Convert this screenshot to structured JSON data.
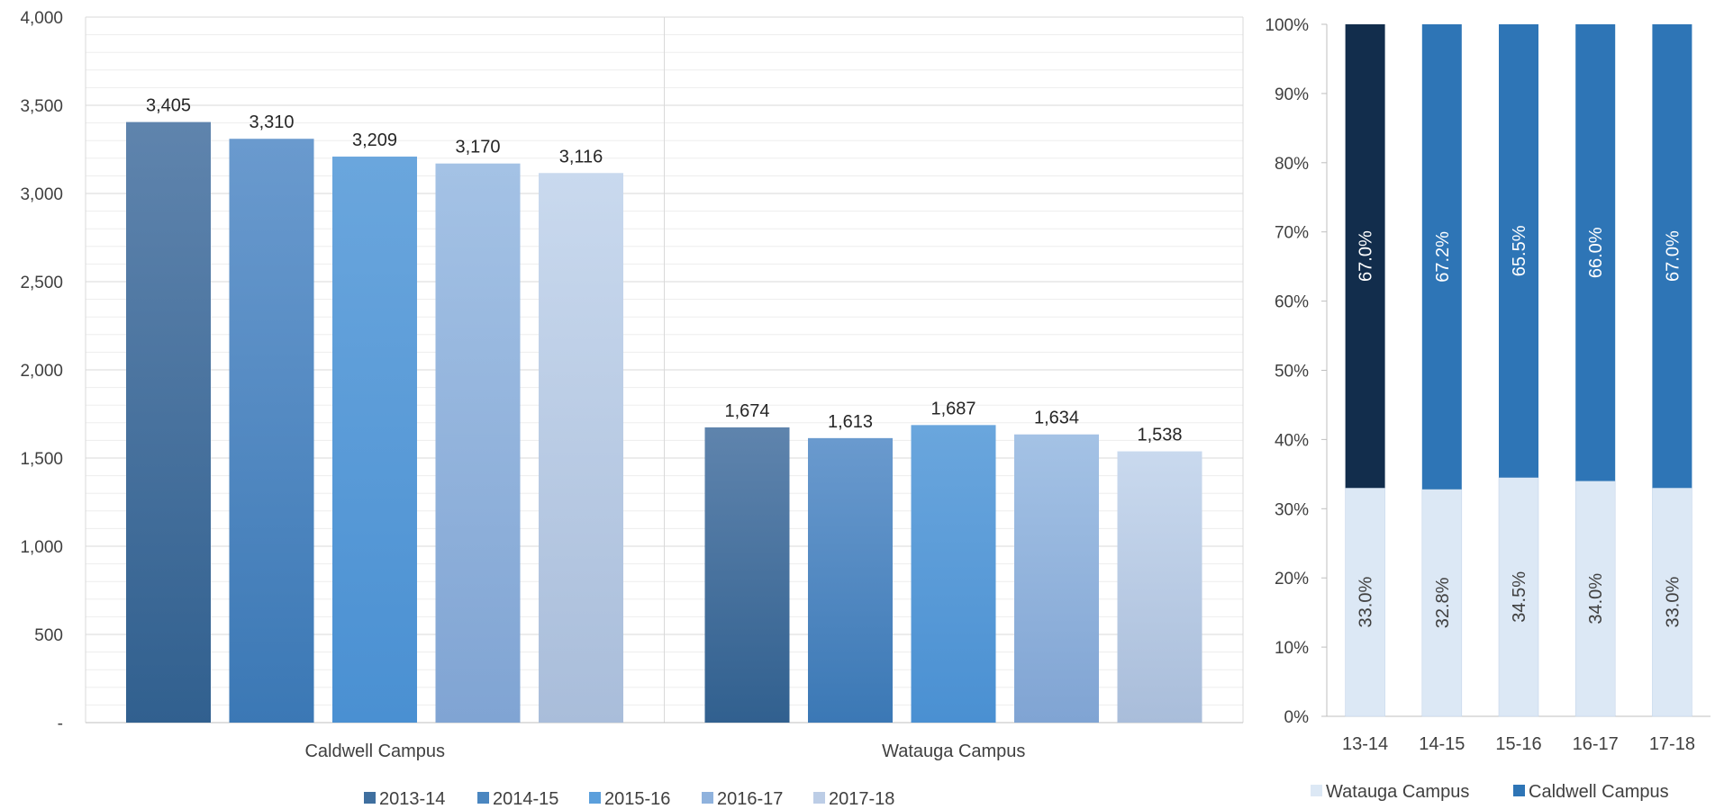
{
  "colors": {
    "y2013": "#3f6f9f",
    "y2014": "#4a86c0",
    "y2015": "#5b9fdc",
    "y2016": "#8fb2dd",
    "y2017": "#bccde6",
    "watauga": "#dce8f5",
    "caldwell": "#2e75b6",
    "caldwell_first": "#122d4c"
  },
  "chart_data": [
    {
      "type": "bar",
      "title": "",
      "xlabel": "",
      "ylabel": "",
      "ylim": [
        0,
        4000
      ],
      "yticks": [
        0,
        500,
        1000,
        1500,
        2000,
        2500,
        3000,
        3500,
        4000
      ],
      "ytick_labels": [
        "-",
        "500",
        "1,000",
        "1,500",
        "2,000",
        "2,500",
        "3,000",
        "3,500",
        "4,000"
      ],
      "categories": [
        "Caldwell Campus",
        "Watauga Campus"
      ],
      "series": [
        {
          "name": "2013-14",
          "values": [
            3405,
            1674
          ],
          "labels": [
            "3,405",
            "1,674"
          ]
        },
        {
          "name": "2014-15",
          "values": [
            3310,
            1613
          ],
          "labels": [
            "3,310",
            "1,613"
          ]
        },
        {
          "name": "2015-16",
          "values": [
            3209,
            1687
          ],
          "labels": [
            "3,209",
            "1,687"
          ]
        },
        {
          "name": "2016-17",
          "values": [
            3170,
            1634
          ],
          "labels": [
            "3,170",
            "1,634"
          ]
        },
        {
          "name": "2017-18",
          "values": [
            3116,
            1538
          ],
          "labels": [
            "3,116",
            "1,538"
          ]
        }
      ],
      "grid": true,
      "legend": "bottom"
    },
    {
      "type": "bar",
      "stacked": "percent",
      "title": "",
      "xlabel": "",
      "ylabel": "",
      "ylim": [
        0,
        100
      ],
      "ytick_labels": [
        "0%",
        "10%",
        "20%",
        "30%",
        "40%",
        "50%",
        "60%",
        "70%",
        "80%",
        "90%",
        "100%"
      ],
      "categories": [
        "13-14",
        "14-15",
        "15-16",
        "16-17",
        "17-18"
      ],
      "series": [
        {
          "name": "Watauga Campus",
          "values": [
            33.0,
            32.8,
            34.5,
            34.0,
            33.0
          ],
          "labels": [
            "33.0%",
            "32.8%",
            "34.5%",
            "34.0%",
            "33.0%"
          ]
        },
        {
          "name": "Caldwell Campus",
          "values": [
            67.0,
            67.2,
            65.5,
            66.0,
            67.0
          ],
          "labels": [
            "67.0%",
            "67.2%",
            "65.5%",
            "66.0%",
            "67.0%"
          ]
        }
      ],
      "grid": false,
      "legend": "bottom"
    }
  ]
}
